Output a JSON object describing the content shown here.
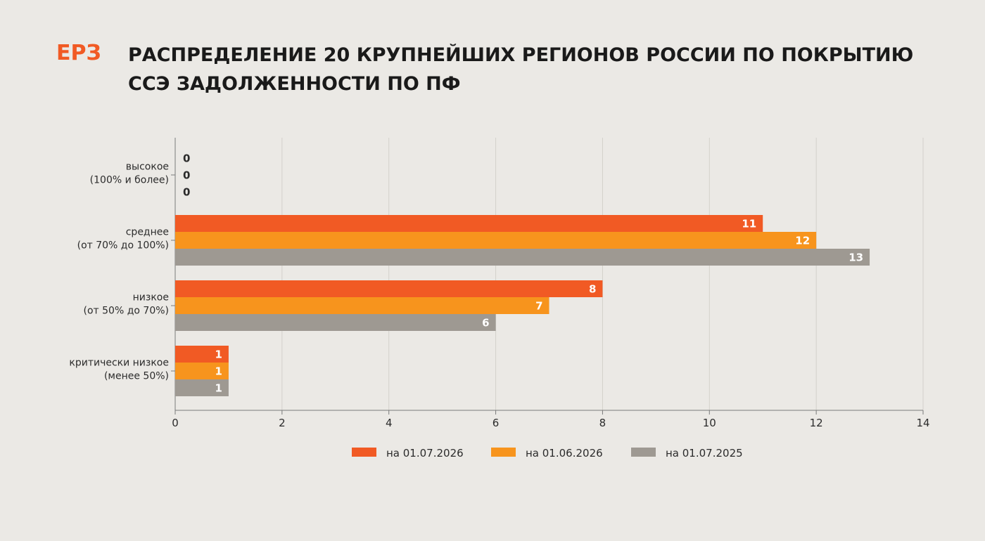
{
  "header": {
    "logo_text": "ЕРЗ",
    "title_line1": "РАСПРЕДЕЛЕНИЕ 20 КРУПНЕЙШИХ РЕГИОНОВ РОССИИ ПО ПОКРЫТИЮ",
    "title_line2": "ССЭ ЗАДОЛЖЕННОСТИ ПО ПФ"
  },
  "colors": {
    "brand": "#f15a24",
    "background": "#ebe9e5"
  },
  "chart_data": {
    "type": "bar",
    "orientation": "horizontal",
    "title": "РАСПРЕДЕЛЕНИЕ 20 КРУПНЕЙШИХ РЕГИОНОВ РОССИИ ПО ПОКРЫТИЮ ССЭ ЗАДОЛЖЕННОСТИ ПО ПФ",
    "categories": [
      [
        "высокое",
        "(100% и более)"
      ],
      [
        "среднее",
        "(от 70% до 100%)"
      ],
      [
        "низкое",
        "(от 50% до 70%)"
      ],
      [
        "критически низкое",
        "(менее 50%)"
      ]
    ],
    "series": [
      {
        "name": "на 01.07.2026",
        "color": "#f15a24",
        "values": [
          0,
          11,
          8,
          1
        ]
      },
      {
        "name": "на 01.06.2026",
        "color": "#f7941d",
        "values": [
          0,
          12,
          7,
          1
        ]
      },
      {
        "name": "на 01.07.2025",
        "color": "#9e9992",
        "values": [
          0,
          13,
          6,
          1
        ]
      }
    ],
    "xlim": [
      0,
      14
    ],
    "xticks": [
      0,
      2,
      4,
      6,
      8,
      10,
      12,
      14
    ],
    "grid": true,
    "legend_position": "bottom"
  }
}
